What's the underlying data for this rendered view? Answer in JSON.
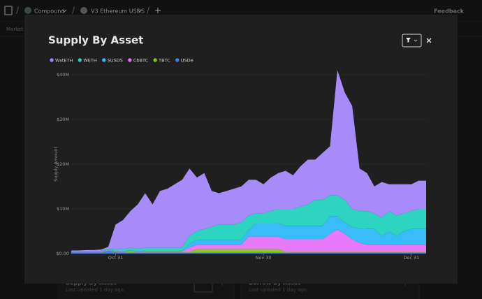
{
  "nav": {
    "items": [
      "Compound",
      "V3 Ethereum USDS"
    ],
    "feedback": "Feedback"
  },
  "background": {
    "section": "Market",
    "cards": [
      {
        "title": "Supply By Asset",
        "updated": "Last updated 1 day ago."
      },
      {
        "title": "Borrow By Asset",
        "updated": "Last updated 1 day ago."
      }
    ]
  },
  "chart_data": {
    "type": "area",
    "stacked": true,
    "title": "Supply By Asset",
    "ylabel": "Supply Amount",
    "legend": "top-left",
    "grid": true,
    "categories": [
      null,
      null,
      null,
      null,
      null,
      null,
      "Oct 31",
      null,
      null,
      null,
      null,
      null,
      null,
      null,
      null,
      null,
      null,
      null,
      null,
      null,
      null,
      null,
      null,
      null,
      null,
      null,
      "Nov 30",
      null,
      null,
      null,
      null,
      null,
      null,
      null,
      null,
      null,
      null,
      null,
      null,
      null,
      null,
      null,
      null,
      null,
      null,
      null,
      "Dec 31",
      null,
      null
    ],
    "ylim": [
      0,
      42000000
    ],
    "yticks": [
      {
        "value": 0,
        "label": "$0.00"
      },
      {
        "value": 10000000,
        "label": "$10M"
      },
      {
        "value": 20000000,
        "label": "$20M"
      },
      {
        "value": 30000000,
        "label": "$30M"
      },
      {
        "value": 40000000,
        "label": "$40M"
      }
    ],
    "series": [
      {
        "name": "WstETH",
        "color": "#a78bfa",
        "values": [
          100000,
          100000,
          200000,
          200000,
          300000,
          400000,
          5500000,
          6500000,
          8200000,
          9900000,
          12200000,
          9700000,
          12700000,
          13200000,
          14200000,
          15200000,
          15000000,
          12000000,
          12500000,
          8000000,
          7000000,
          7500000,
          8000000,
          8000000,
          8000000,
          7500000,
          6500000,
          7500000,
          8000000,
          8500000,
          7500000,
          9000000,
          10000000,
          9000000,
          10500000,
          11000000,
          28000000,
          24000000,
          23000000,
          9500000,
          8500000,
          6000000,
          8000000,
          6000000,
          7000000,
          6500000,
          6000000,
          6300000,
          6300000
        ]
      },
      {
        "name": "WETH",
        "color": "#2dd4bf",
        "values": [
          100000,
          100000,
          100000,
          100000,
          100000,
          200000,
          400000,
          500000,
          500000,
          600000,
          700000,
          700000,
          700000,
          700000,
          700000,
          700000,
          1800000,
          2000000,
          2500000,
          3000000,
          3500000,
          3500000,
          3500000,
          4000000,
          3200000,
          2200000,
          2200000,
          2700000,
          3200000,
          3800000,
          3800000,
          4300000,
          4800000,
          5800000,
          5800000,
          4600000,
          4600000,
          5100000,
          4000000,
          3900000,
          4000000,
          3500000,
          4000000,
          4500000,
          4500000,
          4000000,
          4000000,
          4500000,
          4500000
        ]
      },
      {
        "name": "SUSDS",
        "color": "#38bdf8",
        "values": [
          100000,
          100000,
          100000,
          100000,
          100000,
          100000,
          100000,
          100000,
          100000,
          100000,
          100000,
          100000,
          100000,
          100000,
          100000,
          100000,
          800000,
          1000000,
          1000000,
          1000000,
          1000000,
          1000000,
          1000000,
          1000000,
          1500000,
          3000000,
          3000000,
          3000000,
          3000000,
          3000000,
          3000000,
          3000000,
          3000000,
          3000000,
          3000000,
          4000000,
          3000000,
          2500000,
          2800000,
          3200000,
          3500000,
          3500000,
          2000000,
          3000000,
          2000000,
          3000000,
          3500000,
          3500000,
          3500000
        ]
      },
      {
        "name": "CbBTC",
        "color": "#e879f9",
        "values": [
          100000,
          100000,
          100000,
          100000,
          100000,
          100000,
          100000,
          100000,
          100000,
          100000,
          100000,
          100000,
          100000,
          100000,
          100000,
          100000,
          1000000,
          1000000,
          1000000,
          1000000,
          1000000,
          1000000,
          1000000,
          1000000,
          2800000,
          2800000,
          2800000,
          2800000,
          2800000,
          2800000,
          2800000,
          2800000,
          2800000,
          2800000,
          2800000,
          4000000,
          5000000,
          4000000,
          2800000,
          2000000,
          1600000,
          1600000,
          1600000,
          1600000,
          1600000,
          1600000,
          1600000,
          1600000,
          1600000
        ]
      },
      {
        "name": "TBTC",
        "color": "#84cc16",
        "values": [
          100000,
          100000,
          100000,
          100000,
          100000,
          100000,
          100000,
          100000,
          400000,
          100000,
          200000,
          200000,
          200000,
          200000,
          200000,
          200000,
          200000,
          800000,
          800000,
          800000,
          800000,
          800000,
          800000,
          800000,
          800000,
          800000,
          800000,
          800000,
          800000,
          200000,
          200000,
          200000,
          200000,
          200000,
          200000,
          200000,
          200000,
          200000,
          200000,
          200000,
          200000,
          200000,
          200000,
          200000,
          200000,
          200000,
          200000,
          200000,
          200000
        ]
      },
      {
        "name": "USDe",
        "color": "#3b82f6",
        "values": [
          200000,
          200000,
          200000,
          200000,
          200000,
          600000,
          300000,
          200000,
          200000,
          200000,
          200000,
          200000,
          200000,
          200000,
          200000,
          200000,
          200000,
          200000,
          200000,
          200000,
          200000,
          200000,
          200000,
          200000,
          200000,
          200000,
          200000,
          200000,
          200000,
          200000,
          200000,
          200000,
          200000,
          200000,
          200000,
          200000,
          200000,
          200000,
          200000,
          200000,
          200000,
          200000,
          200000,
          200000,
          200000,
          200000,
          200000,
          200000,
          200000
        ]
      }
    ]
  }
}
